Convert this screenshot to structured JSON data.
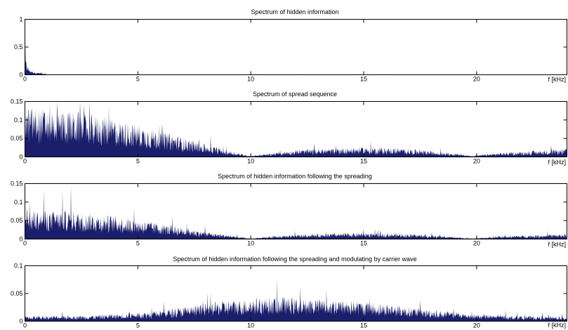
{
  "chart_data": [
    {
      "type": "bar",
      "title": "Spectrum of hidden information",
      "xlabel": "f [kHz]",
      "ylabel": "",
      "xlim": [
        0,
        24
      ],
      "ylim": [
        0,
        1
      ],
      "xticks": [
        0,
        5,
        10,
        15,
        20
      ],
      "yticks": [
        0,
        0.5,
        1
      ],
      "ytick_labels": [
        "0",
        "0.5",
        "1"
      ],
      "grid": false,
      "envelope": {
        "f_khz": [
          0,
          0.05,
          0.1,
          0.2,
          0.3,
          0.5,
          0.8,
          1.0,
          24
        ],
        "magnitude": [
          0.24,
          0.18,
          0.12,
          0.07,
          0.05,
          0.03,
          0.02,
          0.005,
          0.002
        ]
      },
      "noise": 0.5
    },
    {
      "type": "bar",
      "title": "Spectrum of spread sequence",
      "xlabel": "f [kHz]",
      "ylabel": "",
      "xlim": [
        0,
        24
      ],
      "ylim": [
        0,
        0.15
      ],
      "xticks": [
        0,
        5,
        10,
        15,
        20
      ],
      "yticks": [
        0,
        0.05,
        0.1,
        0.15
      ],
      "ytick_labels": [
        "0",
        "0.05",
        "0.1",
        "0.15"
      ],
      "grid": false,
      "envelope": {
        "f_khz": [
          0,
          2,
          4,
          6,
          8,
          9.5,
          10,
          12,
          15,
          17,
          19,
          19.8,
          21,
          24
        ],
        "magnitude": [
          0.085,
          0.08,
          0.065,
          0.045,
          0.022,
          0.006,
          0.002,
          0.012,
          0.017,
          0.014,
          0.006,
          0.002,
          0.007,
          0.014
        ]
      },
      "noise": 0.6
    },
    {
      "type": "bar",
      "title": "Spectrum of hidden information following the spreading",
      "xlabel": "f [kHz]",
      "ylabel": "",
      "xlim": [
        0,
        24
      ],
      "ylim": [
        0,
        0.15
      ],
      "xticks": [
        0,
        5,
        10,
        15,
        20
      ],
      "yticks": [
        0,
        0.05,
        0.1,
        0.15
      ],
      "ytick_labels": [
        "0",
        "0.05",
        "0.1",
        "0.15"
      ],
      "grid": false,
      "envelope": {
        "f_khz": [
          0,
          2,
          4,
          6,
          8,
          9.5,
          10,
          12,
          15,
          17,
          19,
          19.8,
          21,
          24
        ],
        "magnitude": [
          0.05,
          0.048,
          0.04,
          0.027,
          0.013,
          0.004,
          0.001,
          0.008,
          0.011,
          0.009,
          0.004,
          0.001,
          0.005,
          0.009
        ]
      },
      "noise": 0.6
    },
    {
      "type": "bar",
      "title": "Spectrum of hidden information following the spreading and modulating by carrier wave",
      "xlabel": "f [kHz]",
      "ylabel": "",
      "xlim": [
        0,
        24
      ],
      "ylim": [
        0,
        0.1
      ],
      "xticks": [
        0,
        5,
        10,
        15,
        20
      ],
      "yticks": [
        0,
        0.05,
        0.1
      ],
      "ytick_labels": [
        "0",
        "0.05",
        "0.1"
      ],
      "grid": false,
      "envelope": {
        "f_khz": [
          0,
          3,
          5,
          7,
          9,
          11,
          12,
          14,
          16,
          18,
          20,
          22,
          24
        ],
        "magnitude": [
          0.006,
          0.007,
          0.01,
          0.016,
          0.024,
          0.028,
          0.027,
          0.025,
          0.02,
          0.013,
          0.008,
          0.006,
          0.005
        ]
      },
      "noise": 0.6
    }
  ],
  "colors": {
    "bars": "#1b1f6b",
    "axes": "#000000",
    "background": "#ffffff"
  }
}
